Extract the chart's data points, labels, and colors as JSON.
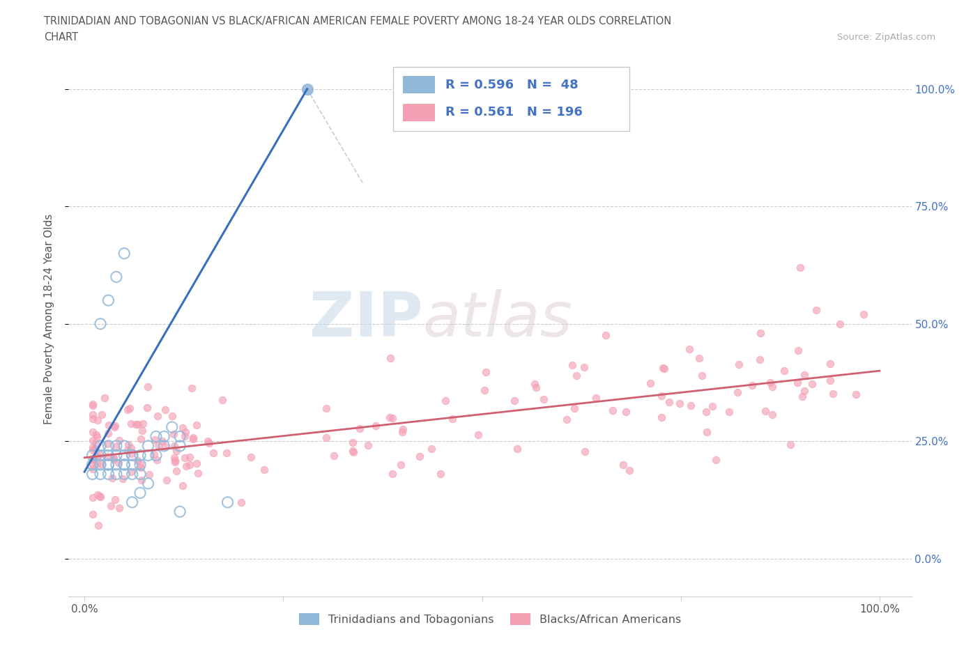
{
  "title_line1": "TRINIDADIAN AND TOBAGONIAN VS BLACK/AFRICAN AMERICAN FEMALE POVERTY AMONG 18-24 YEAR OLDS CORRELATION",
  "title_line2": "CHART",
  "source": "Source: ZipAtlas.com",
  "ylabel": "Female Poverty Among 18-24 Year Olds",
  "R_blue": 0.596,
  "N_blue": 48,
  "R_pink": 0.561,
  "N_pink": 196,
  "blue_scatter_color": "#92b8d8",
  "blue_line_color": "#3a6fbf",
  "pink_scatter_color": "#f4a0b4",
  "pink_line_color": "#d06070",
  "legend_label_blue": "Trinidadians and Tobagonians",
  "legend_label_pink": "Blacks/African Americans",
  "watermark_zip": "ZIP",
  "watermark_atlas": "atlas",
  "title_color": "#555555",
  "source_color": "#aaaaaa",
  "right_axis_color": "#4472c4"
}
